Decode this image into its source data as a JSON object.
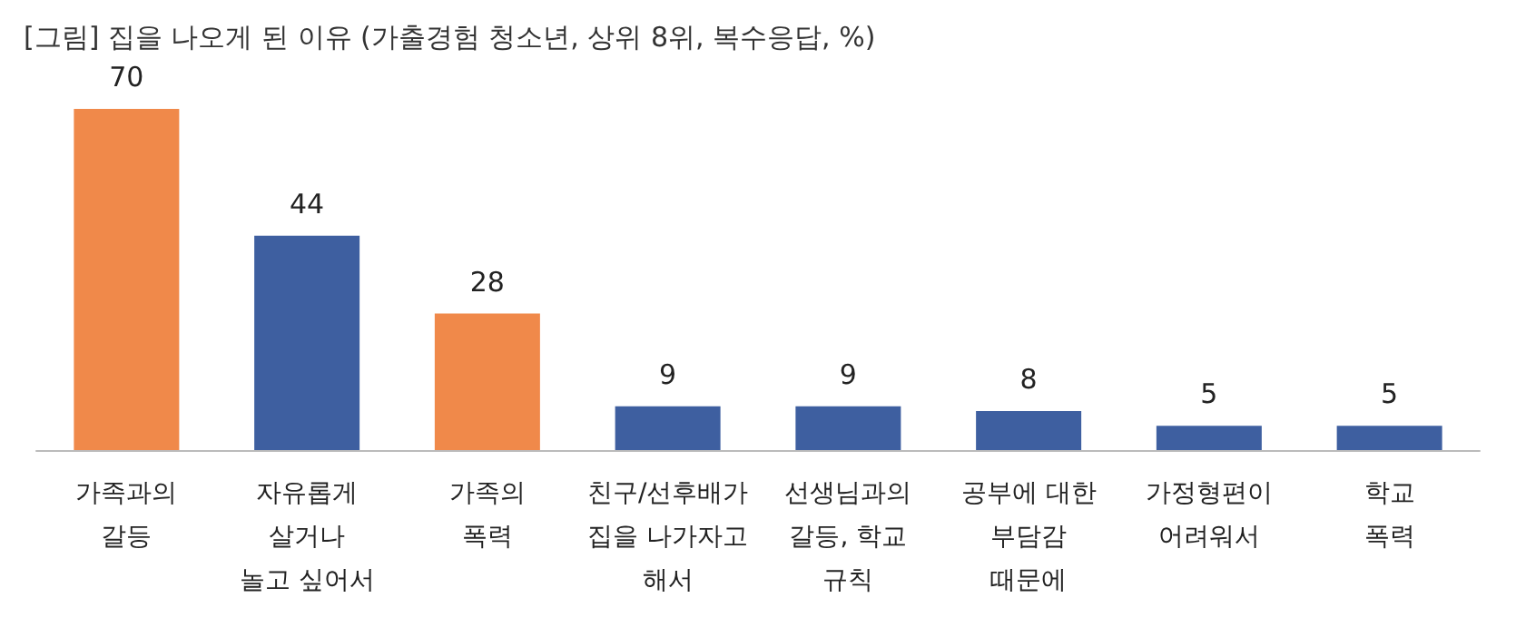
{
  "chart_data": {
    "type": "bar",
    "title": "[그림] 집을 나오게 된 이유 (가출경험 청소년, 상위 8위, 복수응답, %)",
    "categories": [
      "가족과의\n갈등",
      "자유롭게\n살거나\n놀고 싶어서",
      "가족의\n폭력",
      "친구/선후배가\n집을 나가자고\n해서",
      "선생님과의\n갈등, 학교\n규칙",
      "공부에 대한\n부담감\n때문에",
      "가정형편이\n어려워서",
      "학교\n폭력"
    ],
    "values": [
      70,
      44,
      28,
      9,
      9,
      8,
      5,
      5
    ],
    "colors": [
      "#f0894a",
      "#3e5fa0",
      "#f0894a",
      "#3e5fa0",
      "#3e5fa0",
      "#3e5fa0",
      "#3e5fa0",
      "#3e5fa0"
    ],
    "data_labels": true
  }
}
